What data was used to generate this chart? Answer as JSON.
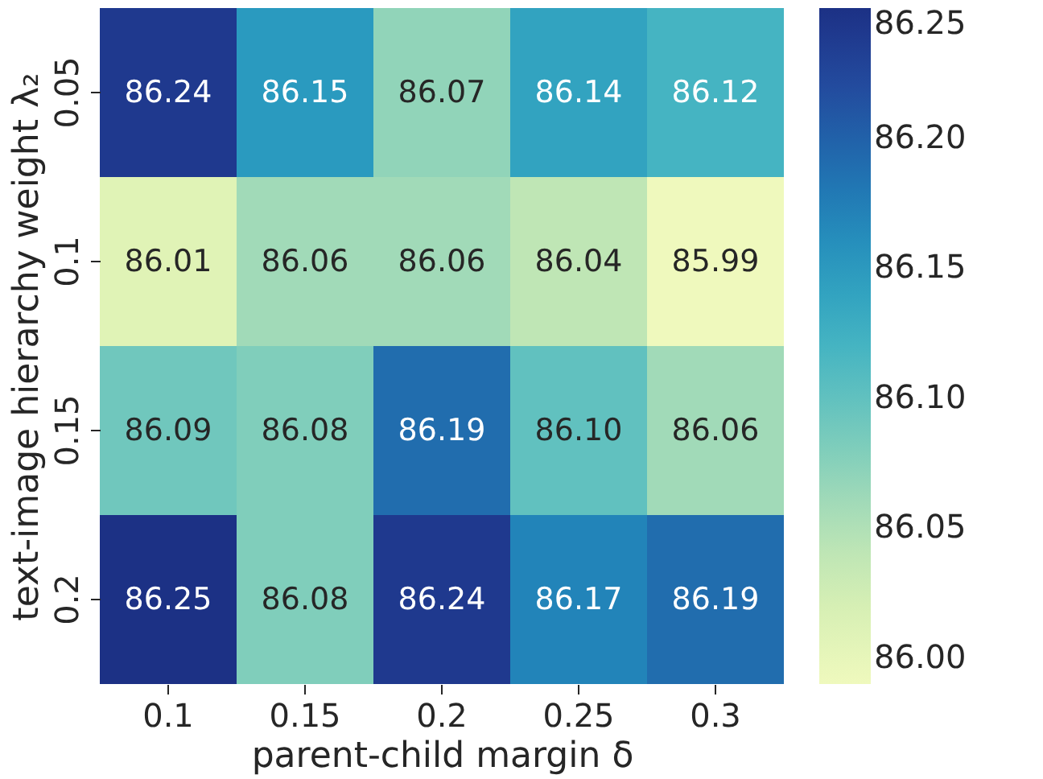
{
  "chart_data": {
    "type": "heatmap",
    "xlabel": "parent-child margin δ",
    "ylabel": "text-image hierarchy weight λ₂",
    "categories": [
      "0.1",
      "0.15",
      "0.2",
      "0.25",
      "0.3"
    ],
    "y_categories": [
      "0.05",
      "0.1",
      "0.15",
      "0.2"
    ],
    "cells": [
      [
        86.24,
        86.15,
        86.07,
        86.14,
        86.12
      ],
      [
        86.01,
        86.06,
        86.06,
        86.04,
        85.99
      ],
      [
        86.09,
        86.08,
        86.19,
        86.1,
        86.06
      ],
      [
        86.25,
        86.08,
        86.24,
        86.17,
        86.19
      ]
    ],
    "cell_labels": [
      [
        "86.24",
        "86.15",
        "86.07",
        "86.14",
        "86.12"
      ],
      [
        "86.01",
        "86.06",
        "86.06",
        "86.04",
        "85.99"
      ],
      [
        "86.09",
        "86.08",
        "86.19",
        "86.10",
        "86.06"
      ],
      [
        "86.25",
        "86.08",
        "86.24",
        "86.17",
        "86.19"
      ]
    ],
    "clim": [
      85.99,
      86.25
    ],
    "cticks": [
      {
        "value": 86.0,
        "label": "86.00"
      },
      {
        "value": 86.05,
        "label": "86.05"
      },
      {
        "value": 86.1,
        "label": "86.10"
      },
      {
        "value": 86.15,
        "label": "86.15"
      },
      {
        "value": 86.2,
        "label": "86.20"
      },
      86.25
    ],
    "data_labels": true
  }
}
